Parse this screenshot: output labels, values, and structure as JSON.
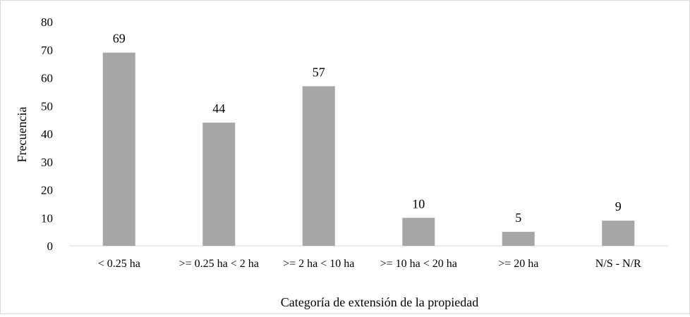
{
  "chart_data": {
    "type": "bar",
    "categories": [
      "< 0.25 ha",
      ">= 0.25 ha < 2 ha",
      ">= 2 ha < 10 ha",
      ">= 10 ha < 20 ha",
      ">= 20 ha",
      "N/S - N/R"
    ],
    "values": [
      69,
      44,
      57,
      10,
      5,
      9
    ],
    "data_labels": [
      "69",
      "44",
      "57",
      "10",
      "5",
      "9"
    ],
    "xlabel": "Categoría de extensión de la propiedad",
    "ylabel": "Frecuencia",
    "ylim": [
      0,
      80
    ],
    "yticks": [
      "0",
      "10",
      "20",
      "30",
      "40",
      "50",
      "60",
      "70",
      "80"
    ],
    "grid": false,
    "legend": "none",
    "bar_color": "#a6a6a6",
    "axis_color": "#d9d9d9"
  }
}
